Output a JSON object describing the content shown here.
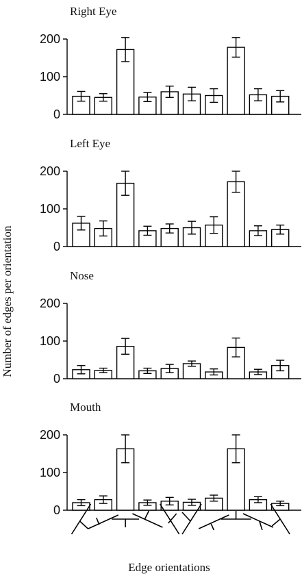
{
  "chart_data": {
    "type": "bar",
    "ylabel": "Number of edges per orientation",
    "xlabel": "Edge orientations",
    "yticks": [
      0,
      100,
      200
    ],
    "ylim": [
      0,
      200
    ],
    "categories": [
      "orientation-1",
      "orientation-2",
      "orientation-3",
      "orientation-4",
      "orientation-5",
      "orientation-6",
      "orientation-7",
      "orientation-8",
      "orientation-9",
      "orientation-10"
    ],
    "panels": [
      {
        "title": "Right Eye",
        "values": [
          48,
          45,
          172,
          46,
          60,
          54,
          50,
          178,
          52,
          48
        ],
        "errors": [
          13,
          10,
          32,
          12,
          15,
          18,
          18,
          26,
          16,
          15
        ]
      },
      {
        "title": "Left Eye",
        "values": [
          62,
          48,
          168,
          42,
          48,
          50,
          57,
          172,
          42,
          45
        ],
        "errors": [
          18,
          20,
          32,
          12,
          12,
          17,
          22,
          28,
          13,
          12
        ]
      },
      {
        "title": "Nose",
        "values": [
          24,
          22,
          86,
          21,
          27,
          40,
          18,
          83,
          18,
          35
        ],
        "errors": [
          11,
          6,
          21,
          7,
          11,
          7,
          8,
          25,
          7,
          14
        ]
      },
      {
        "title": "Mouth",
        "values": [
          20,
          28,
          163,
          20,
          24,
          21,
          32,
          163,
          28,
          18
        ],
        "errors": [
          8,
          10,
          37,
          7,
          10,
          8,
          8,
          37,
          8,
          6
        ]
      }
    ]
  }
}
